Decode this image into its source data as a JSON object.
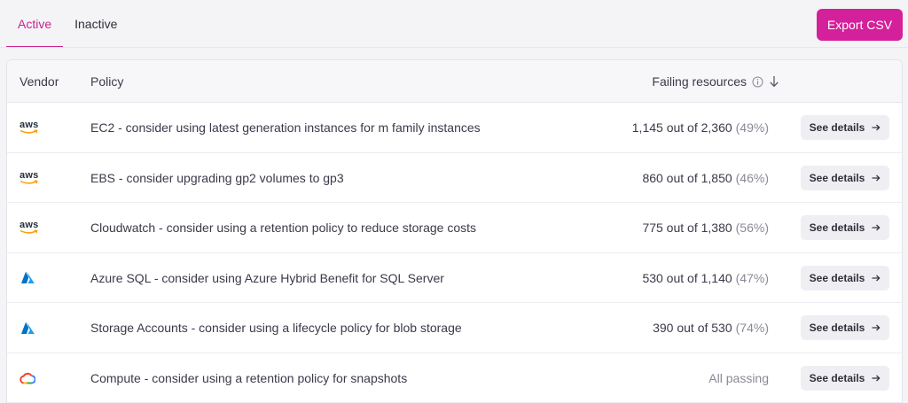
{
  "tabs": [
    {
      "label": "Active",
      "active": true
    },
    {
      "label": "Inactive",
      "active": false
    }
  ],
  "toolbar": {
    "export_label": "Export CSV"
  },
  "colors": {
    "accent": "#d4209a",
    "aws_arrow": "#ff9900",
    "azure": "#0078d4"
  },
  "table": {
    "headers": {
      "vendor": "Vendor",
      "policy": "Policy",
      "failing": "Failing resources"
    },
    "details_label": "See details",
    "rows": [
      {
        "vendor": "aws",
        "vendor_icon": "aws-logo-icon",
        "policy": "EC2 - consider using latest generation instances for m family instances",
        "failing": "1,145 out of 2,360",
        "pct": "(49%)"
      },
      {
        "vendor": "aws",
        "vendor_icon": "aws-logo-icon",
        "policy": "EBS - consider upgrading gp2 volumes to gp3",
        "failing": "860 out of 1,850",
        "pct": "(46%)"
      },
      {
        "vendor": "aws",
        "vendor_icon": "aws-logo-icon",
        "policy": "Cloudwatch - consider using a retention policy to reduce storage costs",
        "failing": "775 out of 1,380",
        "pct": "(56%)"
      },
      {
        "vendor": "",
        "vendor_icon": "azure-logo-icon",
        "policy": "Azure SQL - consider using Azure Hybrid Benefit for SQL Server",
        "failing": "530 out of 1,140",
        "pct": "(47%)"
      },
      {
        "vendor": "",
        "vendor_icon": "azure-logo-icon",
        "policy": "Storage Accounts - consider using a lifecycle policy for blob storage",
        "failing": "390 out of 530",
        "pct": "(74%)"
      },
      {
        "vendor": "",
        "vendor_icon": "gcp-logo-icon",
        "policy": "Compute - consider using a retention policy for snapshots",
        "failing": "All passing",
        "pct": ""
      }
    ]
  }
}
